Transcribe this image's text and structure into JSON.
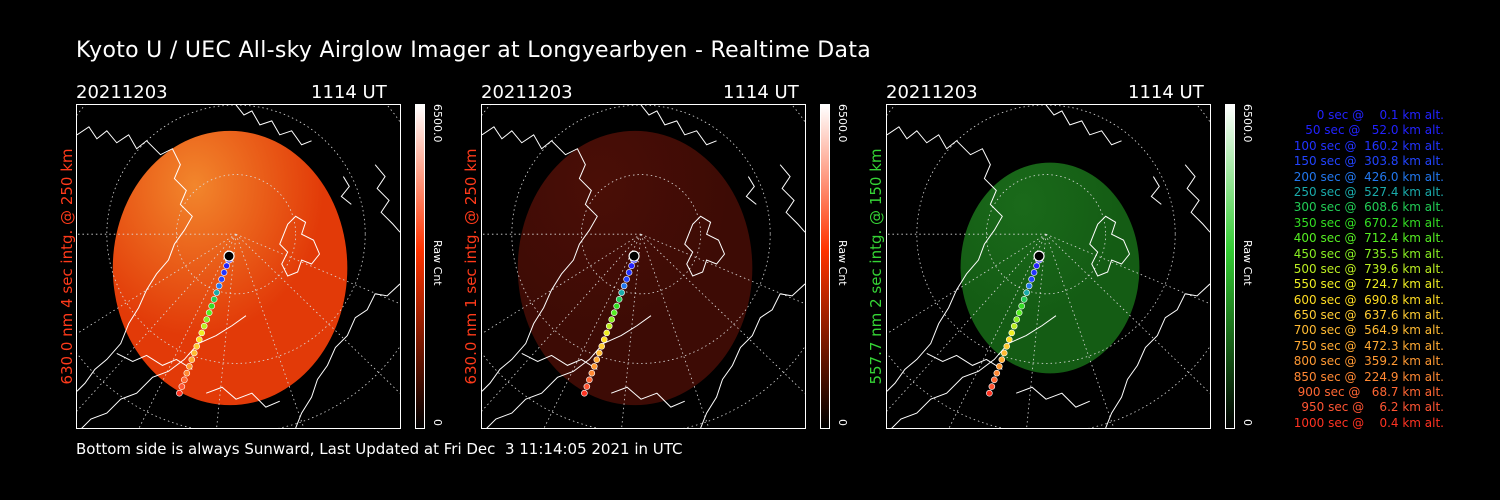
{
  "title": "Kyoto U / UEC All-sky Airglow Imager at Longyearbyen - Realtime Data",
  "footer": "Bottom side is always Sunward, Last Updated at Fri Dec  3 11:14:05 2021 in UTC",
  "panels": [
    {
      "date": "20211203",
      "time": "1114 UT",
      "ylabel": "630.0 nm 4 sec intg. @ 250 km",
      "label_color": "#ff3a1a",
      "cbar_max": "6500.0",
      "cbar_unit": "Raw Cnt",
      "cbar_min": "0",
      "cbar_color": "#ff3300",
      "fill_color": "#e23a08",
      "fill_glow": "#f2862c"
    },
    {
      "date": "20211203",
      "time": "1114 UT",
      "ylabel": "630.0 nm 1 sec intg. @ 250 km",
      "label_color": "#ff3a1a",
      "cbar_max": "6500.0",
      "cbar_unit": "Raw Cnt",
      "cbar_min": "0",
      "cbar_color": "#ff3300",
      "fill_color": "#3d0b05",
      "fill_glow": "#4a0e06"
    },
    {
      "date": "20211203",
      "time": "1114 UT",
      "ylabel": "557.7 nm 2 sec intg. @ 150 km",
      "label_color": "#35d435",
      "cbar_max": "6500.0",
      "cbar_unit": "Raw Cnt",
      "cbar_min": "0",
      "cbar_color": "#33cc33",
      "fill_color": "#145c14",
      "fill_glow": "#1a6a1a"
    }
  ],
  "legend": [
    {
      "text": "0 sec @    0.1 km alt.",
      "color": "#2222ff"
    },
    {
      "text": "50 sec @   52.0 km alt.",
      "color": "#2222ff"
    },
    {
      "text": "100 sec @  160.2 km alt.",
      "color": "#2233ff"
    },
    {
      "text": "150 sec @  303.8 km alt.",
      "color": "#2244ff"
    },
    {
      "text": "200 sec @  426.0 km alt.",
      "color": "#2277ee"
    },
    {
      "text": "250 sec @  527.4 km alt.",
      "color": "#1aaaaa"
    },
    {
      "text": "300 sec @  608.6 km alt.",
      "color": "#22cc55"
    },
    {
      "text": "350 sec @  670.2 km alt.",
      "color": "#33dd22"
    },
    {
      "text": "400 sec @  712.4 km alt.",
      "color": "#55ee22"
    },
    {
      "text": "450 sec @  735.5 km alt.",
      "color": "#88ee22"
    },
    {
      "text": "500 sec @  739.6 km alt.",
      "color": "#bbee22"
    },
    {
      "text": "550 sec @  724.7 km alt.",
      "color": "#eeee22"
    },
    {
      "text": "600 sec @  690.8 km alt.",
      "color": "#ffdd22"
    },
    {
      "text": "650 sec @  637.6 km alt.",
      "color": "#ffcc33"
    },
    {
      "text": "700 sec @  564.9 km alt.",
      "color": "#ffbb33"
    },
    {
      "text": "750 sec @  472.3 km alt.",
      "color": "#ffaa33"
    },
    {
      "text": "800 sec @  359.2 km alt.",
      "color": "#ff9933"
    },
    {
      "text": "850 sec @  224.9 km alt.",
      "color": "#ff8833"
    },
    {
      "text": "900 sec @   68.7 km alt.",
      "color": "#ff6633"
    },
    {
      "text": "950 sec @    6.2 km alt.",
      "color": "#ff5533"
    },
    {
      "text": "1000 sec @    0.4 km alt.",
      "color": "#ff3322"
    }
  ]
}
